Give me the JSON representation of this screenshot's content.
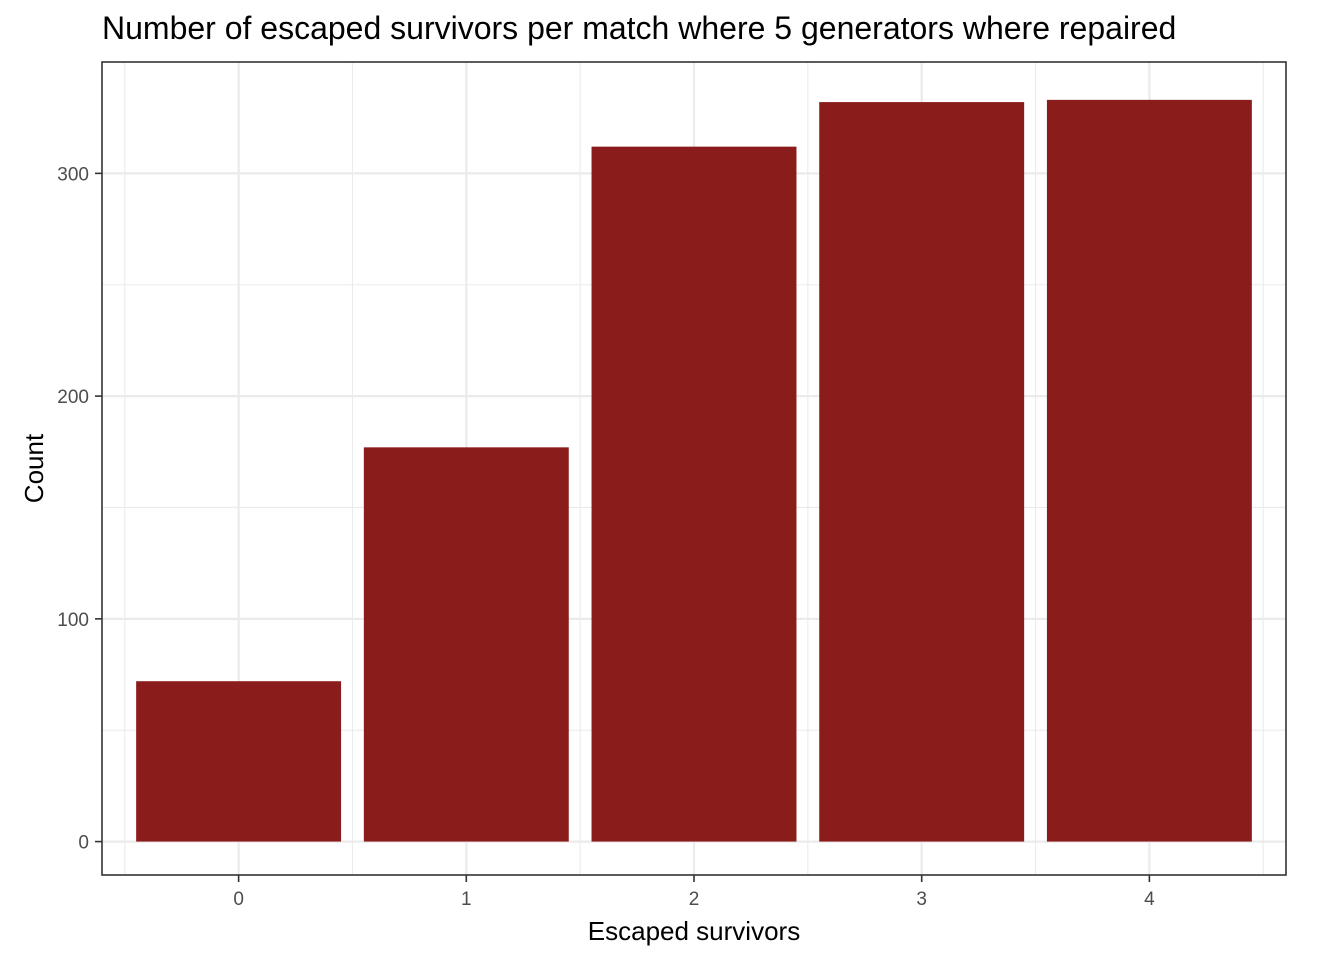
{
  "chart_data": {
    "type": "bar",
    "title": "Number of escaped survivors per match where 5 generators where repaired",
    "xlabel": "Escaped survivors",
    "ylabel": "Count",
    "categories": [
      "0",
      "1",
      "2",
      "3",
      "4"
    ],
    "values": [
      72,
      177,
      312,
      332,
      333
    ],
    "ylim": [
      -15,
      350
    ],
    "yticks": [
      0,
      100,
      200,
      300
    ],
    "grid": true,
    "legend": "none",
    "bar_color": "#8B1C1C",
    "background": "#ffffff"
  }
}
